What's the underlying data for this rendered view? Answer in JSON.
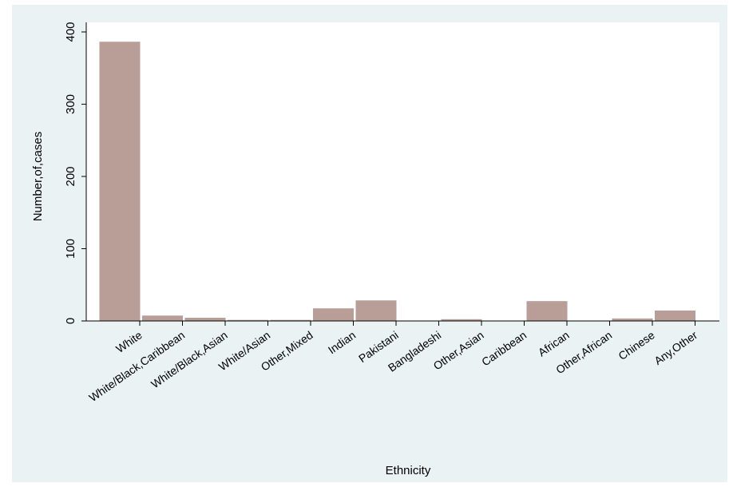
{
  "chart_data": {
    "type": "bar",
    "xlabel": "Ethnicity",
    "ylabel": "Number,of,cases",
    "ylim": [
      0,
      400
    ],
    "yticks": [
      0,
      100,
      200,
      300,
      400
    ],
    "grid": true,
    "categories": [
      "White",
      "White/Black,Caribbean",
      "White/Black,Asian",
      "White/Asian",
      "Other,Mixed",
      "Indian",
      "Pakistani",
      "Bangladeshi",
      "Other,Asian",
      "Caribbean",
      "African",
      "Other,African",
      "Chinese",
      "Any,Other"
    ],
    "values": [
      387,
      8,
      5,
      2,
      2,
      18,
      29,
      0,
      3,
      0,
      28,
      0,
      4,
      15
    ],
    "colors": {
      "bar": "#b99e98",
      "background": "#eaf2f3",
      "plot_background": "#ffffff",
      "grid": "#eaf2f3"
    }
  }
}
